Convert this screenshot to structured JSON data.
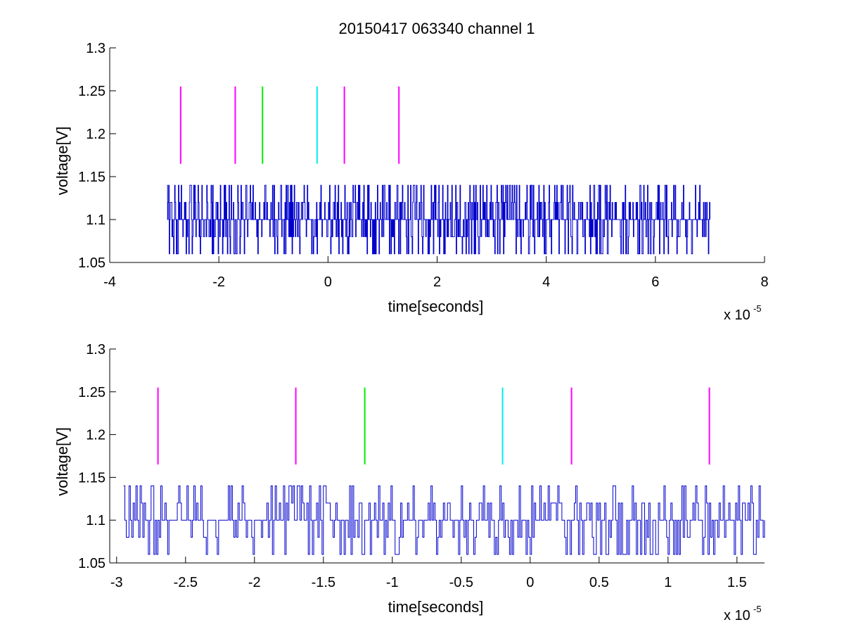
{
  "figure": {
    "title": "20150417 063340 channel 1",
    "colors": {
      "signal": "#0000cc",
      "marker_magenta": "#ff00ff",
      "marker_green": "#00ee00",
      "marker_cyan": "#00eeee",
      "axes": "#000000",
      "background": "#ffffff"
    }
  },
  "chart_data": [
    {
      "type": "line",
      "title": "20150417 063340 channel 1",
      "xlabel": "time[seconds]",
      "ylabel": "voltage[V]",
      "x_exponent_label": "x 10",
      "x_exponent": "-5",
      "x_scale": 1e-05,
      "xlim": [
        -4,
        8
      ],
      "ylim": [
        1.05,
        1.3
      ],
      "xticks": [
        -4,
        -2,
        0,
        2,
        4,
        6,
        8
      ],
      "xtick_labels": [
        "-4",
        "-2",
        "0",
        "2",
        "4",
        "6",
        "8"
      ],
      "yticks": [
        1.05,
        1.1,
        1.15,
        1.2,
        1.25,
        1.3
      ],
      "ytick_labels": [
        "1.05",
        "1.1",
        "1.15",
        "1.2",
        "1.25",
        "1.3"
      ],
      "grid": false,
      "series": [
        {
          "color": "#0000cc",
          "x_range": [
            -2.95,
            7.0
          ],
          "levels": [
            1.06,
            1.08,
            1.1,
            1.12,
            1.14
          ],
          "baseline": 1.1,
          "sample_count": 1000
        }
      ],
      "markers": [
        {
          "x": -2.7,
          "y0": 1.165,
          "y1": 1.255,
          "color": "#ff00ff"
        },
        {
          "x": -1.7,
          "y0": 1.165,
          "y1": 1.255,
          "color": "#ff00ff"
        },
        {
          "x": -1.2,
          "y0": 1.165,
          "y1": 1.255,
          "color": "#00ee00"
        },
        {
          "x": -0.2,
          "y0": 1.165,
          "y1": 1.255,
          "color": "#00eeee"
        },
        {
          "x": 0.3,
          "y0": 1.165,
          "y1": 1.255,
          "color": "#ff00ff"
        },
        {
          "x": 1.3,
          "y0": 1.165,
          "y1": 1.255,
          "color": "#ff00ff"
        }
      ]
    },
    {
      "type": "line",
      "title": "",
      "xlabel": "time[seconds]",
      "ylabel": "voltage[V]",
      "x_exponent_label": "x 10",
      "x_exponent": "-5",
      "x_scale": 1e-05,
      "xlim": [
        -3.05,
        1.7
      ],
      "ylim": [
        1.05,
        1.3
      ],
      "xticks": [
        -3,
        -2.5,
        -2,
        -1.5,
        -1,
        -0.5,
        0,
        0.5,
        1,
        1.5
      ],
      "xtick_labels": [
        "-3",
        "-2.5",
        "-2",
        "-1.5",
        "-1",
        "-0.5",
        "0",
        "0.5",
        "1",
        "1.5"
      ],
      "yticks": [
        1.05,
        1.1,
        1.15,
        1.2,
        1.25,
        1.3
      ],
      "ytick_labels": [
        "1.05",
        "1.1",
        "1.15",
        "1.2",
        "1.25",
        "1.3"
      ],
      "grid": false,
      "series": [
        {
          "color": "#0000cc",
          "x_range": [
            -2.95,
            1.7
          ],
          "levels": [
            1.06,
            1.08,
            1.1,
            1.12,
            1.14
          ],
          "baseline": 1.1,
          "sample_count": 466
        }
      ],
      "markers": [
        {
          "x": -2.7,
          "y0": 1.165,
          "y1": 1.255,
          "color": "#ff00ff"
        },
        {
          "x": -1.7,
          "y0": 1.165,
          "y1": 1.255,
          "color": "#ff00ff"
        },
        {
          "x": -1.2,
          "y0": 1.165,
          "y1": 1.255,
          "color": "#00ee00"
        },
        {
          "x": -0.2,
          "y0": 1.165,
          "y1": 1.255,
          "color": "#00eeee"
        },
        {
          "x": 0.3,
          "y0": 1.165,
          "y1": 1.255,
          "color": "#ff00ff"
        },
        {
          "x": 1.3,
          "y0": 1.165,
          "y1": 1.255,
          "color": "#ff00ff"
        }
      ]
    }
  ]
}
